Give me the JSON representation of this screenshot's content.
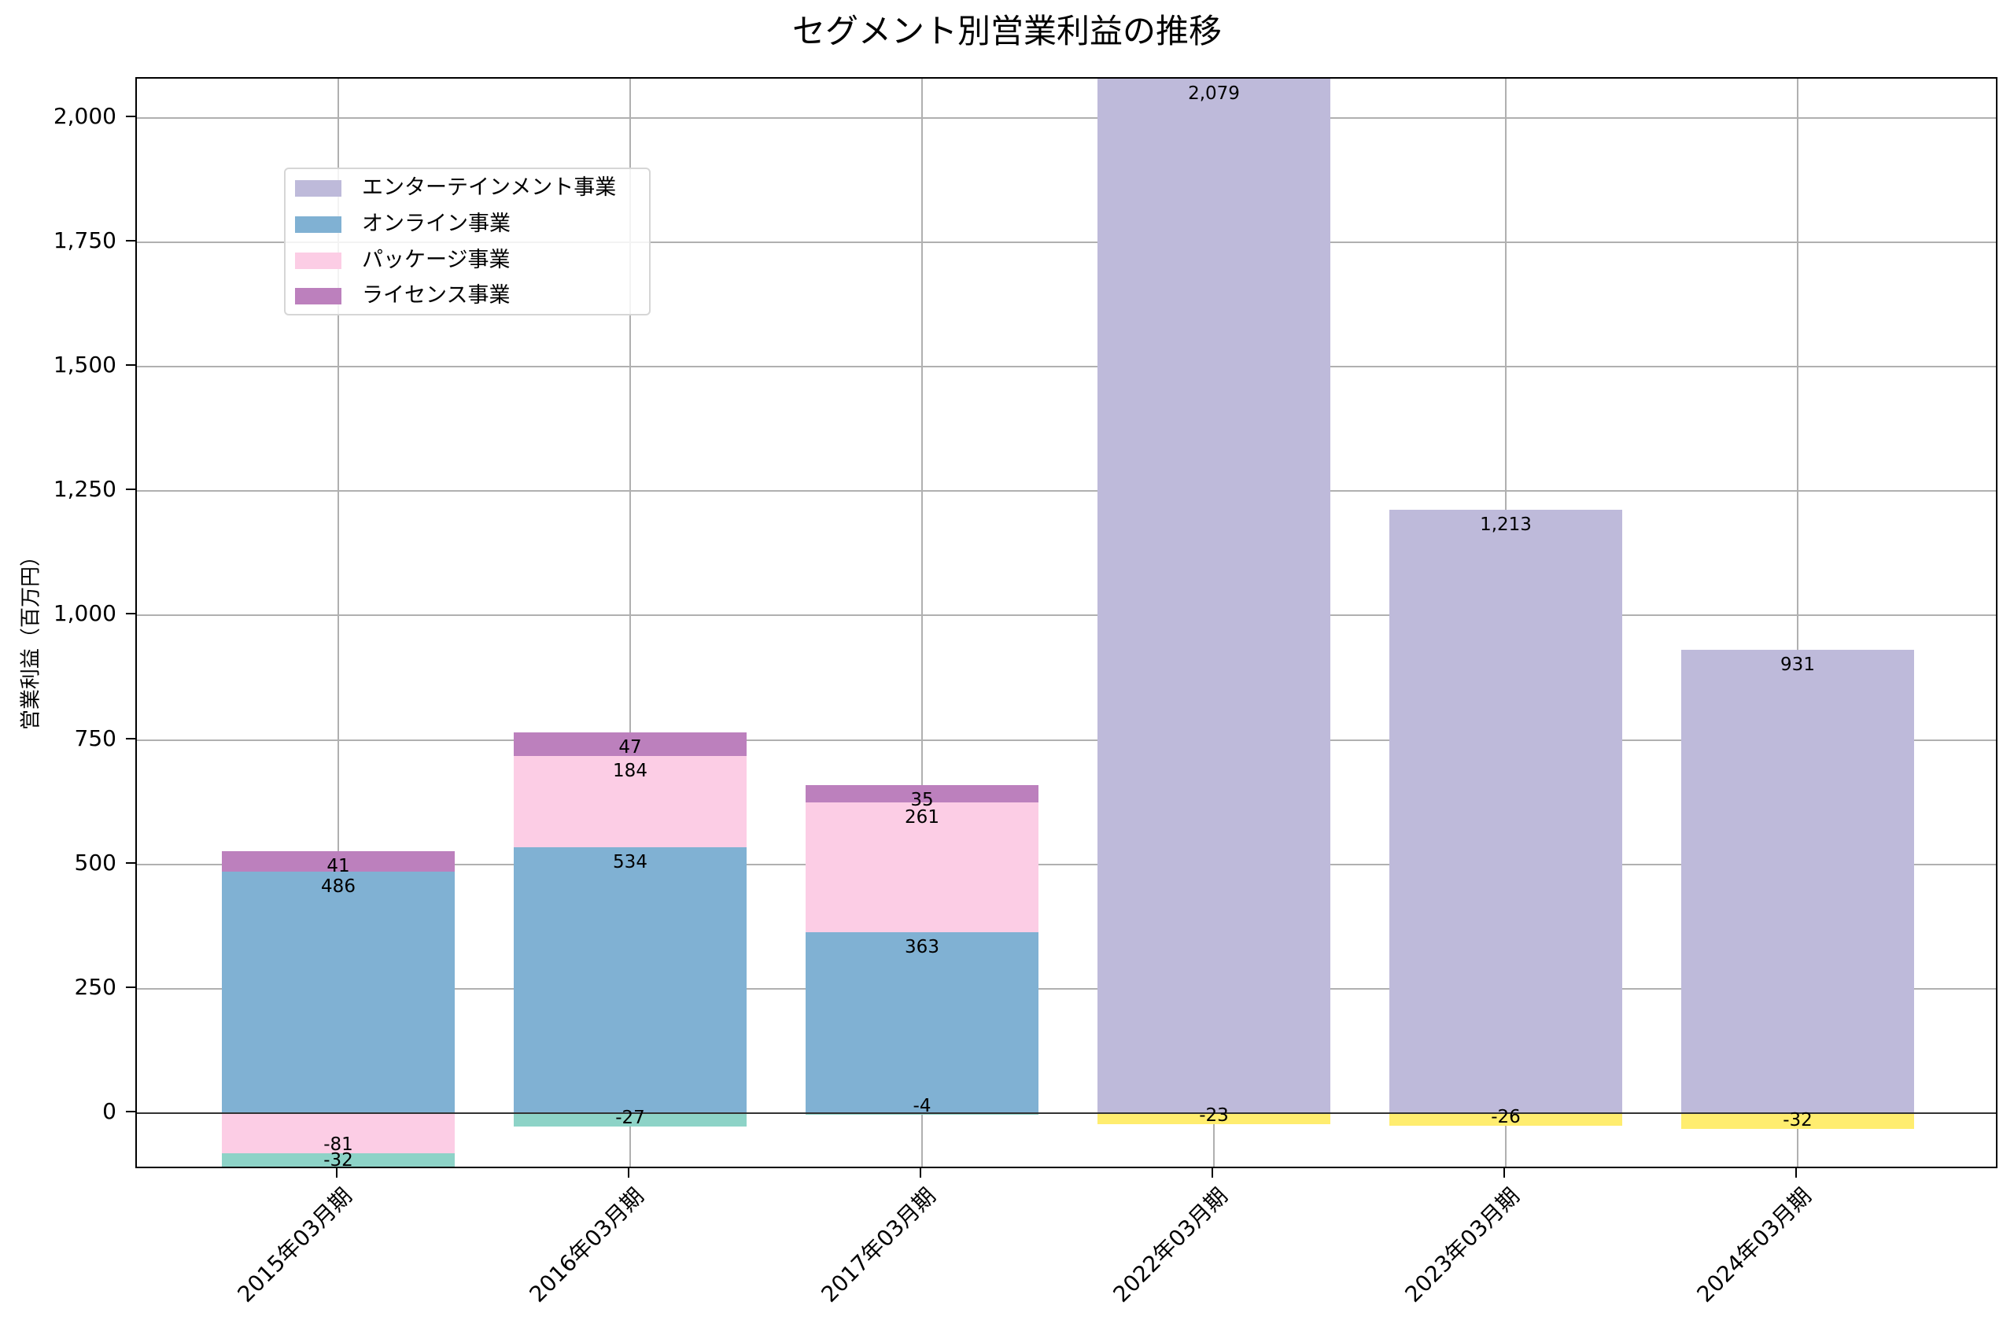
{
  "chart_data": {
    "type": "bar",
    "stacked": true,
    "title": "セグメント別営業利益の推移",
    "xlabel": "",
    "ylabel": "営業利益（百万円）",
    "ylim": [
      -114,
      2079
    ],
    "yticks": [
      0,
      250,
      500,
      750,
      1000,
      1250,
      1500,
      1750,
      2000
    ],
    "ytick_labels": [
      "0",
      "250",
      "500",
      "750",
      "1,000",
      "1,250",
      "1,500",
      "1,750",
      "2,000"
    ],
    "grid": true,
    "legend_position": "upper left",
    "categories": [
      "2015年03月期",
      "2016年03月期",
      "2017年03月期",
      "2022年03月期",
      "2023年03月期",
      "2024年03月期"
    ],
    "series": [
      {
        "name": "エンターテインメント事業",
        "color": "#bebada",
        "in_legend": true,
        "values": [
          0,
          0,
          0,
          2079,
          1213,
          931
        ]
      },
      {
        "name": "オンライン事業",
        "color": "#80b1d3",
        "in_legend": true,
        "values": [
          486,
          534,
          363,
          0,
          0,
          0
        ]
      },
      {
        "name": "パッケージ事業",
        "color": "#fccde5",
        "in_legend": true,
        "values": [
          -81,
          184,
          261,
          0,
          0,
          0
        ]
      },
      {
        "name": "ライセンス事業",
        "color": "#bc80bd",
        "in_legend": true,
        "values": [
          41,
          47,
          35,
          0,
          0,
          0
        ]
      },
      {
        "name": "(unlabeled teal)",
        "color": "#8dd3c7",
        "in_legend": false,
        "values": [
          -32,
          -27,
          -4,
          0,
          0,
          0
        ]
      },
      {
        "name": "(unlabeled yellow)",
        "color": "#ffed6f",
        "in_legend": false,
        "values": [
          0,
          0,
          0,
          -23,
          -26,
          -32
        ]
      }
    ],
    "data_labels": [
      [
        "41",
        "486",
        "-32",
        "-81"
      ],
      [
        "47",
        "184",
        "534",
        "-27"
      ],
      [
        "35",
        "261",
        "363",
        "-4"
      ],
      [
        "2,079",
        "-23"
      ],
      [
        "1,213",
        "-26"
      ],
      [
        "931",
        "-32"
      ]
    ]
  },
  "legend": {
    "items": [
      {
        "label": "エンターテインメント事業",
        "color": "#bebada"
      },
      {
        "label": "オンライン事業",
        "color": "#80b1d3"
      },
      {
        "label": "パッケージ事業",
        "color": "#fccde5"
      },
      {
        "label": "ライセンス事業",
        "color": "#bc80bd"
      }
    ]
  }
}
